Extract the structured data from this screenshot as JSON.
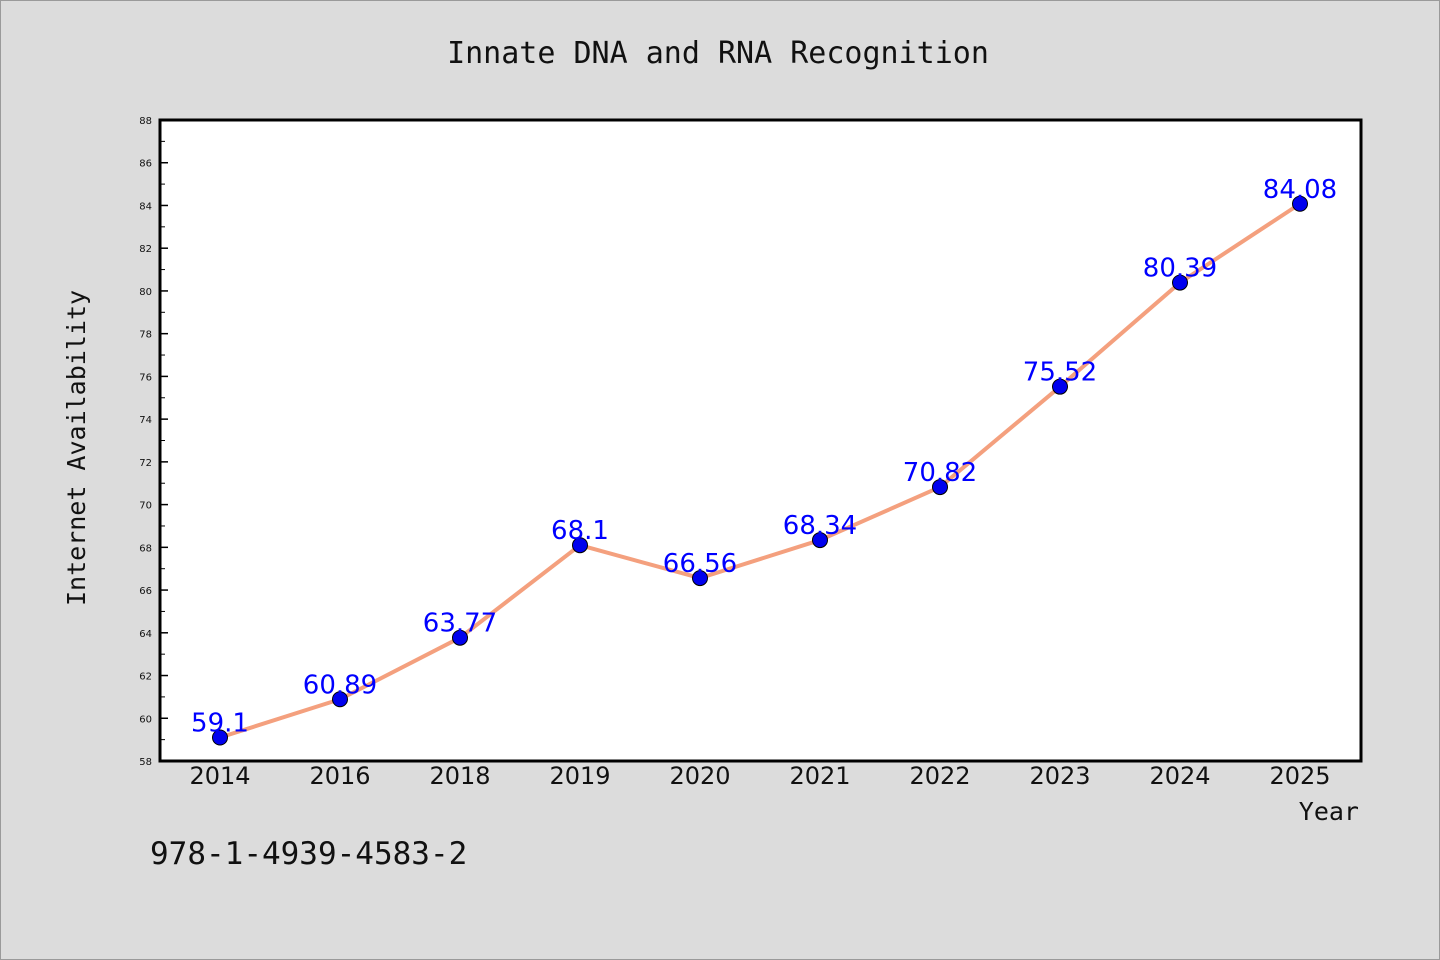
{
  "chart_data": {
    "type": "line",
    "title": "Innate DNA and RNA Recognition",
    "xlabel": "Year",
    "ylabel": "Internet Availability",
    "categories": [
      "2014",
      "2016",
      "2018",
      "2019",
      "2020",
      "2021",
      "2022",
      "2023",
      "2024",
      "2025"
    ],
    "series": [
      {
        "values": [
          59.1,
          60.89,
          63.77,
          68.1,
          66.56,
          68.34,
          70.82,
          75.52,
          80.39,
          84.08
        ],
        "labels": [
          "59.1",
          "60.89",
          "63.77",
          "68.1",
          "66.56",
          "68.34",
          "70.82",
          "75.52",
          "80.39",
          "84.08"
        ],
        "line_color": "#f4a07e",
        "marker_color": "#0000ee"
      }
    ],
    "ylim": [
      58,
      88
    ],
    "yticks": [
      "58",
      "60",
      "62",
      "64",
      "66",
      "68",
      "70",
      "72",
      "74",
      "76",
      "78",
      "80",
      "82",
      "84",
      "86",
      "88"
    ],
    "grid": false,
    "legend": "none"
  },
  "footer_text": "978-1-4939-4583-2",
  "colors": {
    "background": "#dcdcdc",
    "plot_background": "#ffffff",
    "data_label": "#0000ff"
  }
}
